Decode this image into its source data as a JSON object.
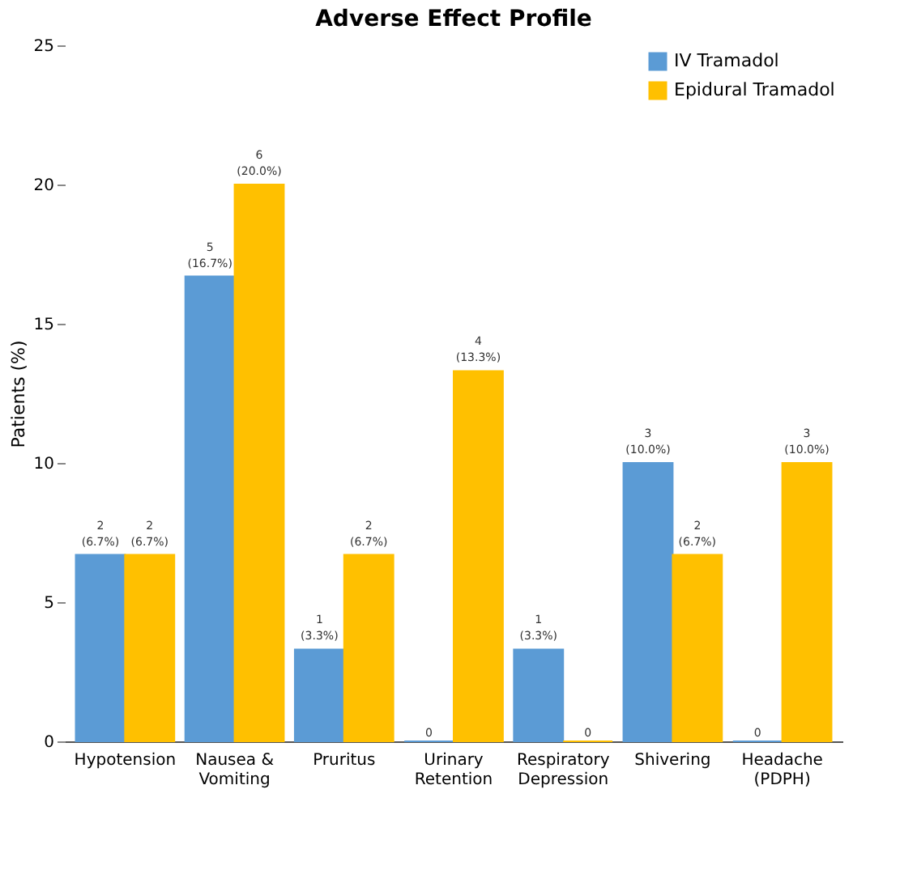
{
  "chart_data": {
    "type": "bar",
    "title": "Adverse Effect Profile",
    "ylabel": "Patients (%)",
    "categories": [
      "Hypotension",
      "Nausea & Vomiting",
      "Pruritus",
      "Urinary Retention",
      "Respiratory Depression",
      "Shivering",
      "Headache (PDPH)"
    ],
    "series": [
      {
        "name": "IV Tramadol",
        "color": "#5b9bd5",
        "values": [
          6.7,
          16.7,
          3.3,
          0,
          3.3,
          10.0,
          0
        ],
        "value_labels": [
          "2\n(6.7%)",
          "5\n(16.7%)",
          "1\n(3.3%)",
          "0",
          "1\n(3.3%)",
          "3\n(10.0%)",
          "0"
        ]
      },
      {
        "name": "Epidural Tramadol",
        "color": "#ffc000",
        "values": [
          6.7,
          20.0,
          6.7,
          13.3,
          0,
          6.7,
          10.0
        ],
        "value_labels": [
          "2\n(6.7%)",
          "6\n(20.0%)",
          "2\n(6.7%)",
          "4\n(13.3%)",
          "0",
          "2\n(6.7%)",
          "3\n(10.0%)"
        ]
      }
    ],
    "ylim": [
      0,
      25
    ],
    "yticks": [
      0,
      5,
      10,
      15,
      20,
      25
    ],
    "grid": false,
    "legend": "top right"
  }
}
